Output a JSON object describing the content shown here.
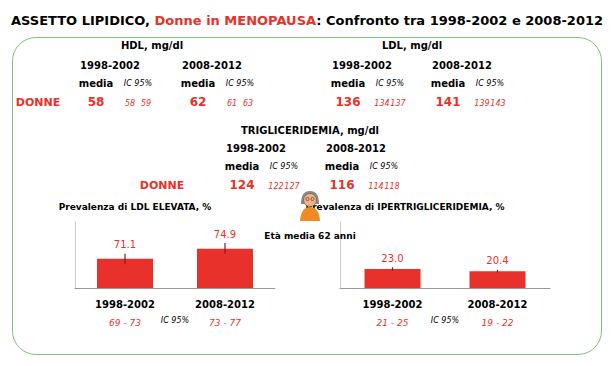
{
  "title": [
    {
      "text": "ASSETTO LIPIDICO, ",
      "color": "#000000"
    },
    {
      "text": "Donne in MENOPAUSA",
      "color": "#e8312a"
    },
    {
      "text": ": Confronto tra 1998-2002 e 2008-2012",
      "color": "#000000"
    }
  ],
  "stats_columns": {
    "mean": "media",
    "ci": "IC 95%"
  },
  "stats_color": "#e8312a",
  "stats": [
    {
      "title": "HDL, mg/dl",
      "row_label": "DONNE",
      "periods": [
        {
          "label": "1998-2002",
          "mean": 58,
          "ci": [
            58,
            59
          ]
        },
        {
          "label": "2008-2012",
          "mean": 62,
          "ci": [
            61,
            63
          ]
        }
      ]
    },
    {
      "title": "LDL, mg/dl",
      "periods": [
        {
          "label": "1998-2002",
          "mean": 136,
          "ci": [
            134,
            137
          ]
        },
        {
          "label": "2008-2012",
          "mean": 141,
          "ci": [
            139,
            143
          ]
        }
      ]
    },
    {
      "title": "TRIGLICERIDEMIA, mg/dl",
      "row_label": "DONNE",
      "periods": [
        {
          "label": "1998-2002",
          "mean": 124,
          "ci": [
            122,
            127
          ]
        },
        {
          "label": "2008-2012",
          "mean": 116,
          "ci": [
            114,
            118
          ]
        }
      ]
    }
  ],
  "note": "Età media 62 anni",
  "chart_data": [
    {
      "type": "bar",
      "title": "Prevalenza di LDL ELEVATA, %",
      "categories": [
        "1998-2002",
        "2008-2012"
      ],
      "values": [
        71.1,
        74.9
      ],
      "error_bars": [
        [
          69,
          73
        ],
        [
          73,
          77
        ]
      ],
      "error_labels": [
        "69 - 73",
        "73 - 77"
      ],
      "error_label_title": "IC 95%",
      "color": "#e8312a",
      "data_labels": true,
      "tick_labels": "x",
      "grid": false,
      "ylim": [
        60,
        85
      ]
    },
    {
      "type": "bar",
      "title": "Prevalenza di IPERTRIGLICERIDEMIA, %",
      "categories": [
        "1998-2002",
        "2008-2012"
      ],
      "values": [
        23.0,
        20.4
      ],
      "value_labels": [
        "23.0",
        "20.4"
      ],
      "error_bars": [
        [
          21,
          25
        ],
        [
          19,
          22
        ]
      ],
      "error_labels": [
        "21 - 25",
        "19 - 22"
      ],
      "error_label_title": "IC 95%",
      "color": "#e8312a",
      "data_labels": true,
      "tick_labels": "x",
      "grid": false,
      "ylim": [
        0,
        80
      ]
    }
  ]
}
